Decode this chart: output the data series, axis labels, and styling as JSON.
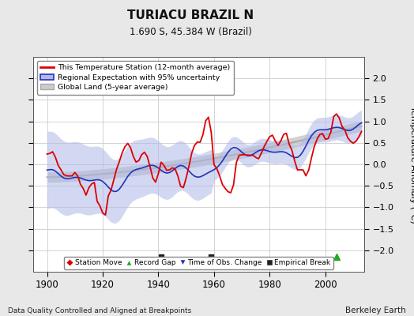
{
  "title": "TURIACU BRAZIL N",
  "subtitle": "1.690 S, 45.384 W (Brazil)",
  "ylabel": "Temperature Anomaly (°C)",
  "xlabel_bottom": "Data Quality Controlled and Aligned at Breakpoints",
  "xlabel_right": "Berkeley Earth",
  "ylim": [
    -2.5,
    2.5
  ],
  "xlim": [
    1895,
    2014
  ],
  "yticks": [
    -2,
    -1.5,
    -1,
    -0.5,
    0,
    0.5,
    1,
    1.5,
    2
  ],
  "xticks": [
    1900,
    1920,
    1940,
    1960,
    1980,
    2000
  ],
  "bg_color": "#e8e8e8",
  "plot_bg_color": "#ffffff",
  "red_color": "#dd0000",
  "blue_color": "#2233bb",
  "blue_fill": "#b0b8e8",
  "gray_color": "#aaaaaa",
  "gray_fill": "#cccccc",
  "empirical_break_years": [
    1941,
    1959
  ],
  "record_gap_years": [
    2004
  ],
  "grid_color": "#cccccc"
}
